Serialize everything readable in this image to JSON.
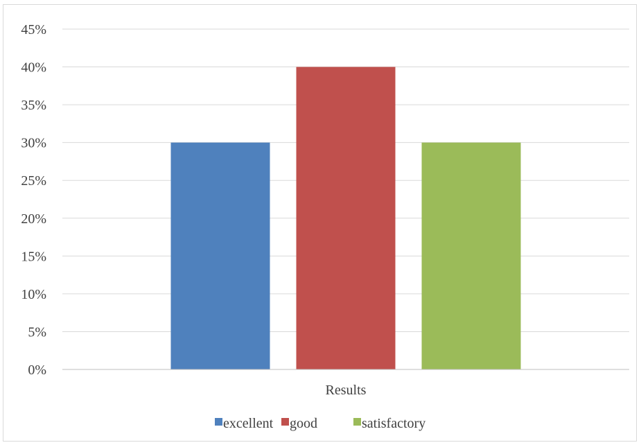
{
  "chart_data": {
    "type": "bar",
    "categories": [
      "Results"
    ],
    "series": [
      {
        "name": "excellent",
        "values": [
          30
        ],
        "color": "#4F81BD"
      },
      {
        "name": "good",
        "values": [
          40
        ],
        "color": "#C0504D"
      },
      {
        "name": "satisfactory",
        "values": [
          30
        ],
        "color": "#9BBB59"
      }
    ],
    "y_tick_labels": [
      "0%",
      "5%",
      "10%",
      "15%",
      "20%",
      "25%",
      "30%",
      "35%",
      "40%",
      "45%"
    ],
    "ylim": [
      0,
      45
    ],
    "y_unit": "%",
    "grid": true,
    "legend_position": "bottom",
    "gridline_color": "#d9d9d9",
    "axis_color": "#bfbfbf"
  }
}
